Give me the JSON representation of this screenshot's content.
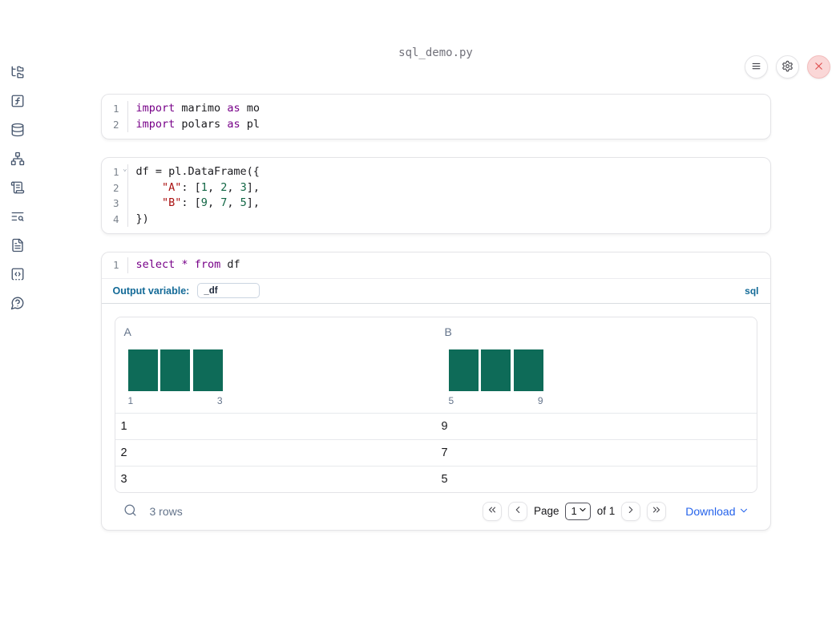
{
  "app": {
    "filename": "sql_demo.py"
  },
  "topbar": {
    "buttons": [
      {
        "icon": "menu-icon"
      },
      {
        "icon": "gear-icon"
      },
      {
        "icon": "close-icon"
      }
    ]
  },
  "sidebar": {
    "items": [
      {
        "icon": "folder-tree-icon"
      },
      {
        "icon": "function-square-icon"
      },
      {
        "icon": "database-icon"
      },
      {
        "icon": "network-icon"
      },
      {
        "icon": "scroll-icon"
      },
      {
        "icon": "text-search-icon"
      },
      {
        "icon": "file-text-icon"
      },
      {
        "icon": "code-snippet-icon"
      },
      {
        "icon": "help-bubble-icon"
      }
    ]
  },
  "colors": {
    "keyword": "#770088",
    "string": "#aa1111",
    "number": "#116644",
    "histogram_bar": "#0e6b58",
    "label_blue": "#136a97",
    "link_blue": "#2563eb"
  },
  "cells": [
    {
      "lines": [
        {
          "n": "1",
          "tokens": [
            {
              "c": "kw",
              "t": "import"
            },
            {
              "c": "pl",
              "t": " marimo "
            },
            {
              "c": "kw",
              "t": "as"
            },
            {
              "c": "pl",
              "t": " mo"
            }
          ]
        },
        {
          "n": "2",
          "tokens": [
            {
              "c": "kw",
              "t": "import"
            },
            {
              "c": "pl",
              "t": " polars "
            },
            {
              "c": "kw",
              "t": "as"
            },
            {
              "c": "pl",
              "t": " pl"
            }
          ]
        }
      ]
    },
    {
      "lines": [
        {
          "n": "1",
          "fold": true,
          "tokens": [
            {
              "c": "pl",
              "t": "df = pl.DataFrame({"
            }
          ]
        },
        {
          "n": "2",
          "tokens": [
            {
              "c": "pl",
              "t": "    "
            },
            {
              "c": "str",
              "t": "\"A\""
            },
            {
              "c": "pl",
              "t": ": ["
            },
            {
              "c": "num",
              "t": "1"
            },
            {
              "c": "pl",
              "t": ", "
            },
            {
              "c": "num",
              "t": "2"
            },
            {
              "c": "pl",
              "t": ", "
            },
            {
              "c": "num",
              "t": "3"
            },
            {
              "c": "pl",
              "t": "],"
            }
          ]
        },
        {
          "n": "3",
          "tokens": [
            {
              "c": "pl",
              "t": "    "
            },
            {
              "c": "str",
              "t": "\"B\""
            },
            {
              "c": "pl",
              "t": ": ["
            },
            {
              "c": "num",
              "t": "9"
            },
            {
              "c": "pl",
              "t": ", "
            },
            {
              "c": "num",
              "t": "7"
            },
            {
              "c": "pl",
              "t": ", "
            },
            {
              "c": "num",
              "t": "5"
            },
            {
              "c": "pl",
              "t": "],"
            }
          ]
        },
        {
          "n": "4",
          "tokens": [
            {
              "c": "pl",
              "t": "})"
            }
          ]
        }
      ]
    },
    {
      "lines": [
        {
          "n": "1",
          "tokens": [
            {
              "c": "kw",
              "t": "select"
            },
            {
              "c": "pl",
              "t": " "
            },
            {
              "c": "kw",
              "t": "*"
            },
            {
              "c": "pl",
              "t": " "
            },
            {
              "c": "kw",
              "t": "from"
            },
            {
              "c": "pl",
              "t": " df"
            }
          ]
        }
      ]
    }
  ],
  "sql_cell": {
    "output_variable_label": "Output variable:",
    "output_variable_value": "_df",
    "language_label": "sql"
  },
  "table": {
    "columns": [
      {
        "label": "A"
      },
      {
        "label": "B"
      }
    ],
    "rows": [
      [
        "1",
        "9"
      ],
      [
        "2",
        "7"
      ],
      [
        "3",
        "5"
      ]
    ],
    "footer": {
      "row_count": "3 rows",
      "page_label": "Page",
      "page_value": "1",
      "of_label": "of 1",
      "download_label": "Download"
    }
  },
  "chart_data": [
    {
      "type": "bar",
      "title": "A",
      "bar_heights": [
        1,
        1,
        1
      ],
      "bins": [
        1,
        2,
        3
      ],
      "x_min": "1",
      "x_max": "3",
      "color": "#0e6b58"
    },
    {
      "type": "bar",
      "title": "B",
      "bar_heights": [
        1,
        1,
        1
      ],
      "bins": [
        5,
        7,
        9
      ],
      "x_min": "5",
      "x_max": "9",
      "color": "#0e6b58"
    }
  ]
}
